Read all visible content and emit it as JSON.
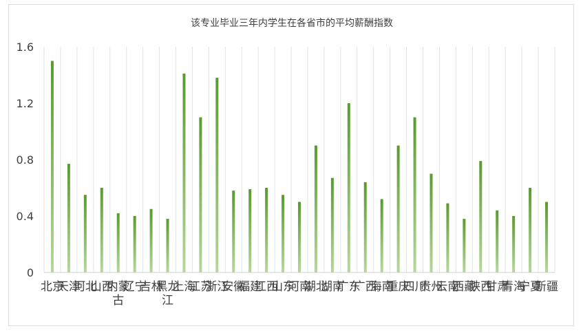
{
  "chart_data": {
    "type": "bar",
    "title": "该专业毕业三年内学生在各省市的平均薪酬指数",
    "xlabel": "",
    "ylabel": "",
    "ylim": [
      0,
      1.6
    ],
    "yticks": [
      0,
      0.4,
      0.8,
      1.2,
      1.6
    ],
    "ytick_labels": [
      "0",
      "0.4",
      "0.8",
      "1.2",
      "1.6"
    ],
    "grid": "vertical",
    "legend": "none",
    "bar_color_top": "#5a9a2f",
    "bar_color_bottom": "#b5d79c",
    "categories": [
      "北京",
      "天津",
      "河北",
      "山西",
      "内蒙古",
      "辽宁",
      "吉林",
      "黑龙江",
      "上海",
      "江苏",
      "浙江",
      "安徽",
      "福建",
      "江西",
      "山东",
      "河南",
      "湖北",
      "湖南",
      "广东",
      "广西",
      "海南",
      "重庆",
      "四川",
      "贵州",
      "云南",
      "西藏",
      "陕西",
      "甘肃",
      "青海",
      "宁夏",
      "新疆"
    ],
    "values": [
      1.5,
      0.77,
      0.55,
      0.6,
      0.42,
      0.4,
      0.45,
      0.38,
      1.41,
      1.1,
      1.38,
      0.58,
      0.59,
      0.6,
      0.55,
      0.5,
      0.9,
      0.67,
      1.2,
      0.64,
      0.52,
      0.9,
      1.1,
      0.7,
      0.49,
      0.38,
      0.79,
      0.44,
      0.4,
      0.6,
      0.5
    ]
  }
}
